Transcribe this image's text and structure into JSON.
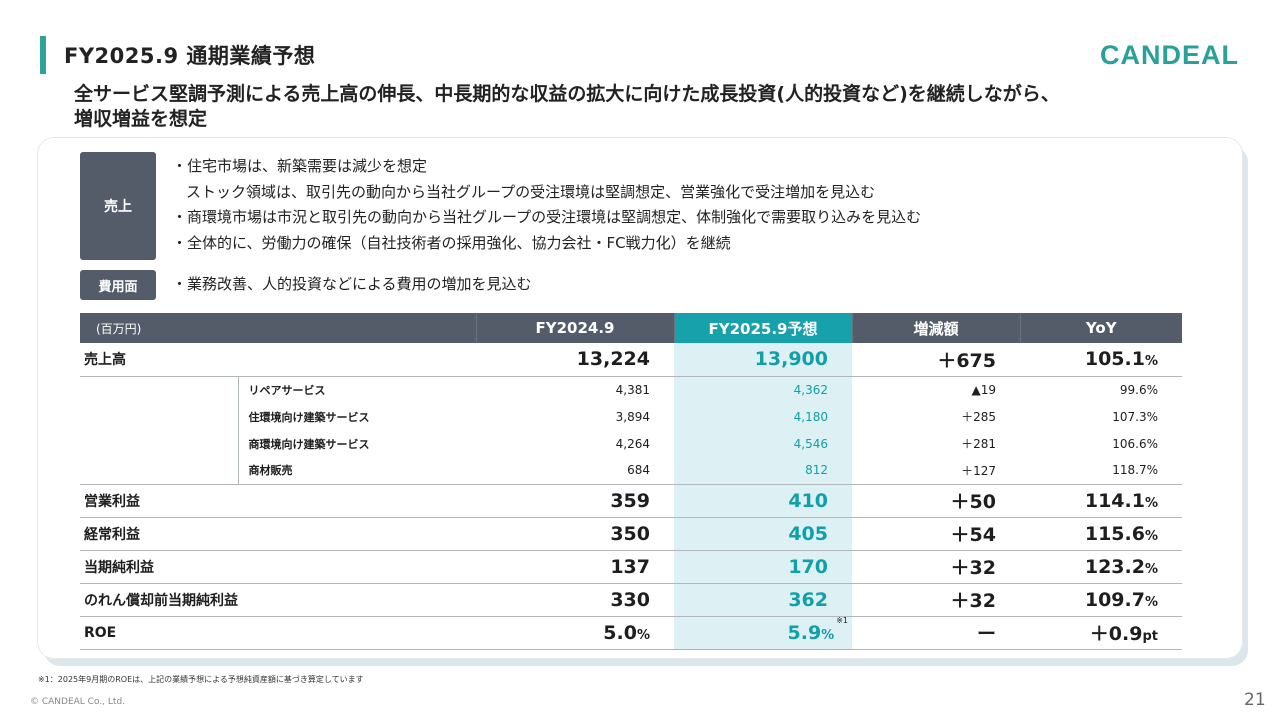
{
  "header": {
    "title": "FY2025.9 通期業績予想",
    "logo": "CANDEAL",
    "subtitle": "全サービス堅調予測による売上高の伸長、中長期的な収益の拡大に向けた成長投資(人的投資など)を継続しながら、増収増益を想定"
  },
  "sales": {
    "tag": "売上",
    "bullets": [
      "・住宅市場は、新築需要は減少を想定",
      "ストック領域は、取引先の動向から当社グループの受注環境は堅調想定、営業強化で受注増加を見込む",
      "・商環境市場は市況と取引先の動向から当社グループの受注環境は堅調想定、体制強化で需要取り込みを見込む",
      "・全体的に、労働力の確保（自社技術者の採用強化、協力会社・FC戦力化）を継続"
    ]
  },
  "cost": {
    "tag": "費用面",
    "bullet": "・業務改善、人的投資などによる費用の増加を見込む"
  },
  "table": {
    "headers": [
      "(百万円)",
      "FY2024.9",
      "FY2025.9予想",
      "増減額",
      "YoY"
    ],
    "rows": {
      "sales": {
        "label": "売上高",
        "prev": "13,224",
        "fcst": "13,900",
        "diff": "＋675",
        "yoy": "105.1",
        "unit": "%"
      },
      "sub": [
        {
          "label": "リペアサービス",
          "prev": "4,381",
          "fcst": "4,362",
          "diff": "▲19",
          "yoy": "99.6%"
        },
        {
          "label": "住環境向け建築サービス",
          "prev": "3,894",
          "fcst": "4,180",
          "diff": "＋285",
          "yoy": "107.3%"
        },
        {
          "label": "商環境向け建築サービス",
          "prev": "4,264",
          "fcst": "4,546",
          "diff": "＋281",
          "yoy": "106.6%"
        },
        {
          "label": "商材販売",
          "prev": "684",
          "fcst": "812",
          "diff": "＋127",
          "yoy": "118.7%"
        }
      ],
      "op": {
        "label": "営業利益",
        "prev": "359",
        "fcst": "410",
        "diff": "＋50",
        "yoy": "114.1",
        "unit": "%"
      },
      "ord": {
        "label": "経常利益",
        "prev": "350",
        "fcst": "405",
        "diff": "＋54",
        "yoy": "115.6",
        "unit": "%"
      },
      "net": {
        "label": "当期純利益",
        "prev": "137",
        "fcst": "170",
        "diff": "＋32",
        "yoy": "123.2",
        "unit": "%"
      },
      "netgw": {
        "label": "のれん償却前当期純利益",
        "prev": "330",
        "fcst": "362",
        "diff": "＋32",
        "yoy": "109.7",
        "unit": "%"
      },
      "roe": {
        "label": "ROE",
        "prev": "5.0",
        "prev_unit": "%",
        "fcst": "5.9",
        "fcst_unit": "%",
        "note": "※1",
        "diff": "ー",
        "yoy": "＋0.9",
        "unit": "pt"
      }
    }
  },
  "footnote": "※1：2025年9月期のROEは、上記の業績予想による予想純資産額に基づき算定しています",
  "copyright": "© CANDEAL Co., Ltd.",
  "page_number": "21",
  "colors": {
    "accent": "#2ea39a",
    "header_dark": "#535c68",
    "highlight": "#17a2ab",
    "highlight_bg": "#ddf0f4"
  }
}
